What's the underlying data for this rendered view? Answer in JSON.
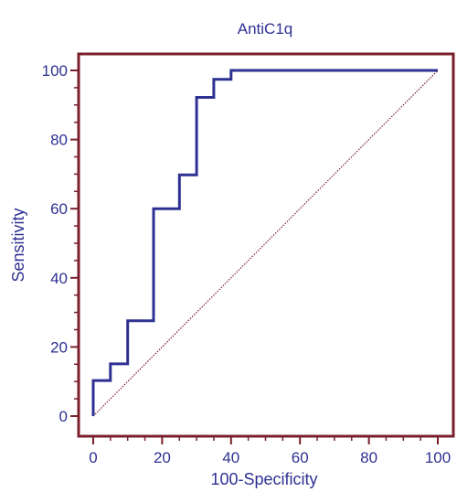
{
  "chart_data": {
    "type": "line",
    "title": "AntiC1q",
    "xlabel": "100-Specificity",
    "ylabel": "Sensitivity",
    "xlim": [
      0,
      100
    ],
    "ylim": [
      0,
      100
    ],
    "xticks": [
      "0",
      "20",
      "40",
      "60",
      "80",
      "100"
    ],
    "yticks": [
      "0",
      "20",
      "40",
      "60",
      "80",
      "100"
    ],
    "grid": false,
    "series": [
      {
        "style": "step",
        "color": "#2e3192",
        "points": [
          [
            0,
            0
          ],
          [
            0,
            10.3
          ],
          [
            5,
            10.3
          ],
          [
            5,
            15.1
          ],
          [
            10,
            15.1
          ],
          [
            10,
            27.6
          ],
          [
            17.5,
            27.6
          ],
          [
            17.5,
            60
          ],
          [
            25,
            60
          ],
          [
            25,
            69.8
          ],
          [
            30,
            69.8
          ],
          [
            30,
            92.2
          ],
          [
            35,
            92.2
          ],
          [
            35,
            97.4
          ],
          [
            40,
            97.4
          ],
          [
            40,
            100
          ],
          [
            100,
            100
          ]
        ]
      },
      {
        "style": "diagonal-reference",
        "color": "#7a1f2b",
        "points": [
          [
            0,
            0
          ],
          [
            100,
            100
          ]
        ]
      }
    ],
    "colors": {
      "frame": "#7a1f2b",
      "text": "#2e3192",
      "curve": "#2e3192"
    }
  }
}
